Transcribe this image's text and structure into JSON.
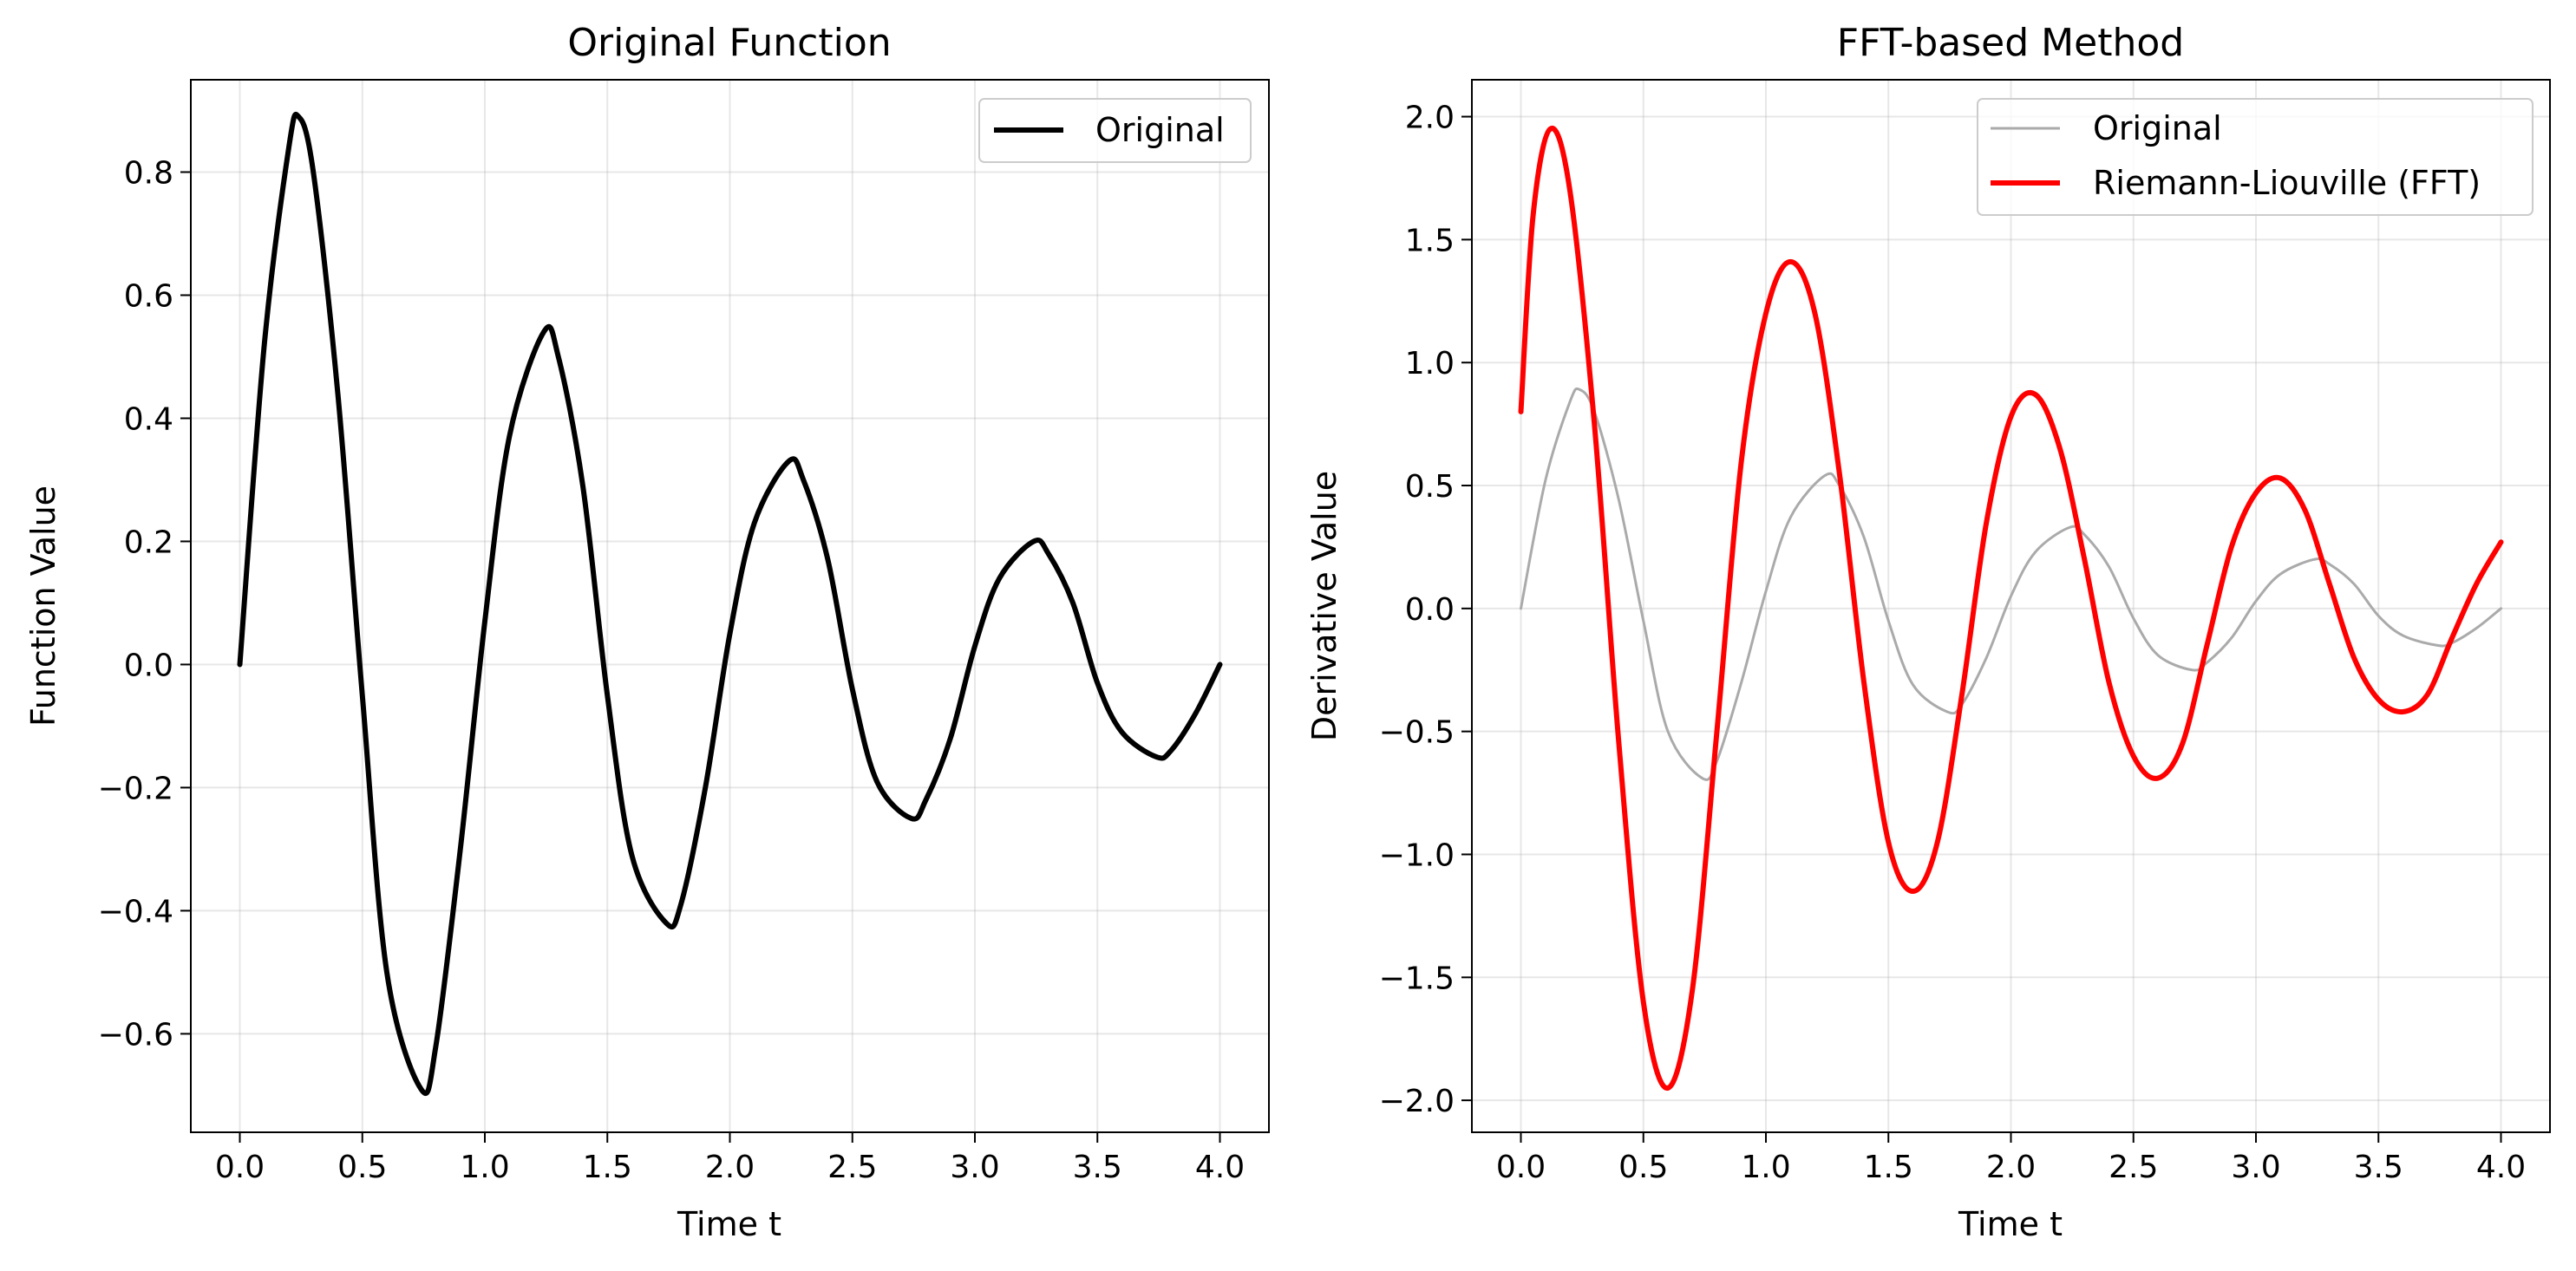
{
  "chart_data": [
    {
      "type": "line",
      "title": "Original Function",
      "xlabel": "Time t",
      "ylabel": "Function Value",
      "xlim": [
        -0.2,
        4.2
      ],
      "ylim": [
        -0.76,
        0.95
      ],
      "xticks": [
        0.0,
        0.5,
        1.0,
        1.5,
        2.0,
        2.5,
        3.0,
        3.5,
        4.0
      ],
      "xtick_labels": [
        "0.0",
        "0.5",
        "1.0",
        "1.5",
        "2.0",
        "2.5",
        "3.0",
        "3.5",
        "4.0"
      ],
      "yticks": [
        -0.6,
        -0.4,
        -0.2,
        0.0,
        0.2,
        0.4,
        0.6,
        0.8
      ],
      "ytick_labels": [
        "−0.6",
        "−0.4",
        "−0.2",
        "0.0",
        "0.2",
        "0.4",
        "0.6",
        "0.8"
      ],
      "grid": true,
      "legend_position": "upper-right",
      "series": [
        {
          "name": "Original",
          "color": "#000000",
          "x": [
            0.0,
            0.1,
            0.2,
            0.24,
            0.3,
            0.4,
            0.5,
            0.6,
            0.74,
            0.8,
            0.9,
            1.0,
            1.1,
            1.24,
            1.3,
            1.4,
            1.5,
            1.6,
            1.74,
            1.8,
            1.9,
            2.0,
            2.1,
            2.24,
            2.3,
            2.4,
            2.5,
            2.6,
            2.74,
            2.8,
            2.9,
            3.0,
            3.1,
            3.24,
            3.3,
            3.4,
            3.5,
            3.6,
            3.74,
            3.8,
            3.9,
            4.0
          ],
          "y": [
            0.0,
            0.52,
            0.84,
            0.89,
            0.8,
            0.44,
            -0.05,
            -0.5,
            -0.69,
            -0.62,
            -0.3,
            0.07,
            0.37,
            0.54,
            0.5,
            0.29,
            -0.05,
            -0.31,
            -0.42,
            -0.39,
            -0.2,
            0.05,
            0.23,
            0.33,
            0.3,
            0.17,
            -0.04,
            -0.19,
            -0.25,
            -0.22,
            -0.12,
            0.03,
            0.14,
            0.2,
            0.18,
            0.1,
            -0.03,
            -0.11,
            -0.15,
            -0.14,
            -0.08,
            0.0
          ]
        }
      ]
    },
    {
      "type": "line",
      "title": "FFT-based Method",
      "xlabel": "Time t",
      "ylabel": "Derivative Value",
      "xlim": [
        -0.2,
        4.2
      ],
      "ylim": [
        -2.13,
        2.15
      ],
      "xticks": [
        0.0,
        0.5,
        1.0,
        1.5,
        2.0,
        2.5,
        3.0,
        3.5,
        4.0
      ],
      "xtick_labels": [
        "0.0",
        "0.5",
        "1.0",
        "1.5",
        "2.0",
        "2.5",
        "3.0",
        "3.5",
        "4.0"
      ],
      "yticks": [
        -2.0,
        -1.5,
        -1.0,
        -0.5,
        0.0,
        0.5,
        1.0,
        1.5,
        2.0
      ],
      "ytick_labels": [
        "−2.0",
        "−1.5",
        "−1.0",
        "−0.5",
        "0.0",
        "0.5",
        "1.0",
        "1.5",
        "2.0"
      ],
      "grid": true,
      "legend_position": "upper-right",
      "series": [
        {
          "name": "Original",
          "color": "#aaaaaa",
          "x": [
            0.0,
            0.1,
            0.2,
            0.24,
            0.3,
            0.4,
            0.5,
            0.6,
            0.74,
            0.8,
            0.9,
            1.0,
            1.1,
            1.24,
            1.3,
            1.4,
            1.5,
            1.6,
            1.74,
            1.8,
            1.9,
            2.0,
            2.1,
            2.24,
            2.3,
            2.4,
            2.5,
            2.6,
            2.74,
            2.8,
            2.9,
            3.0,
            3.1,
            3.24,
            3.3,
            3.4,
            3.5,
            3.6,
            3.74,
            3.8,
            3.9,
            4.0
          ],
          "y": [
            0.0,
            0.52,
            0.84,
            0.89,
            0.8,
            0.44,
            -0.05,
            -0.5,
            -0.69,
            -0.62,
            -0.3,
            0.07,
            0.37,
            0.54,
            0.5,
            0.29,
            -0.05,
            -0.31,
            -0.42,
            -0.39,
            -0.2,
            0.05,
            0.23,
            0.33,
            0.3,
            0.17,
            -0.04,
            -0.19,
            -0.25,
            -0.22,
            -0.12,
            0.03,
            0.14,
            0.2,
            0.18,
            0.1,
            -0.03,
            -0.11,
            -0.15,
            -0.14,
            -0.08,
            0.0
          ]
        },
        {
          "name": "Riemann-Liouville (FFT)",
          "color": "#ff0000",
          "x": [
            0.0,
            0.05,
            0.12,
            0.2,
            0.3,
            0.4,
            0.5,
            0.6,
            0.7,
            0.8,
            0.9,
            1.0,
            1.1,
            1.2,
            1.3,
            1.4,
            1.5,
            1.6,
            1.7,
            1.8,
            1.9,
            2.0,
            2.1,
            2.2,
            2.3,
            2.4,
            2.5,
            2.6,
            2.7,
            2.8,
            2.9,
            3.0,
            3.1,
            3.2,
            3.3,
            3.4,
            3.5,
            3.6,
            3.7,
            3.8,
            3.9,
            4.0
          ],
          "y": [
            0.8,
            1.6,
            1.95,
            1.7,
            0.75,
            -0.55,
            -1.6,
            -1.95,
            -1.55,
            -0.5,
            0.6,
            1.2,
            1.41,
            1.2,
            0.55,
            -0.3,
            -0.95,
            -1.15,
            -0.95,
            -0.35,
            0.35,
            0.78,
            0.87,
            0.65,
            0.2,
            -0.3,
            -0.6,
            -0.69,
            -0.55,
            -0.15,
            0.25,
            0.47,
            0.53,
            0.4,
            0.1,
            -0.2,
            -0.37,
            -0.42,
            -0.35,
            -0.12,
            0.1,
            0.27
          ]
        }
      ]
    }
  ]
}
